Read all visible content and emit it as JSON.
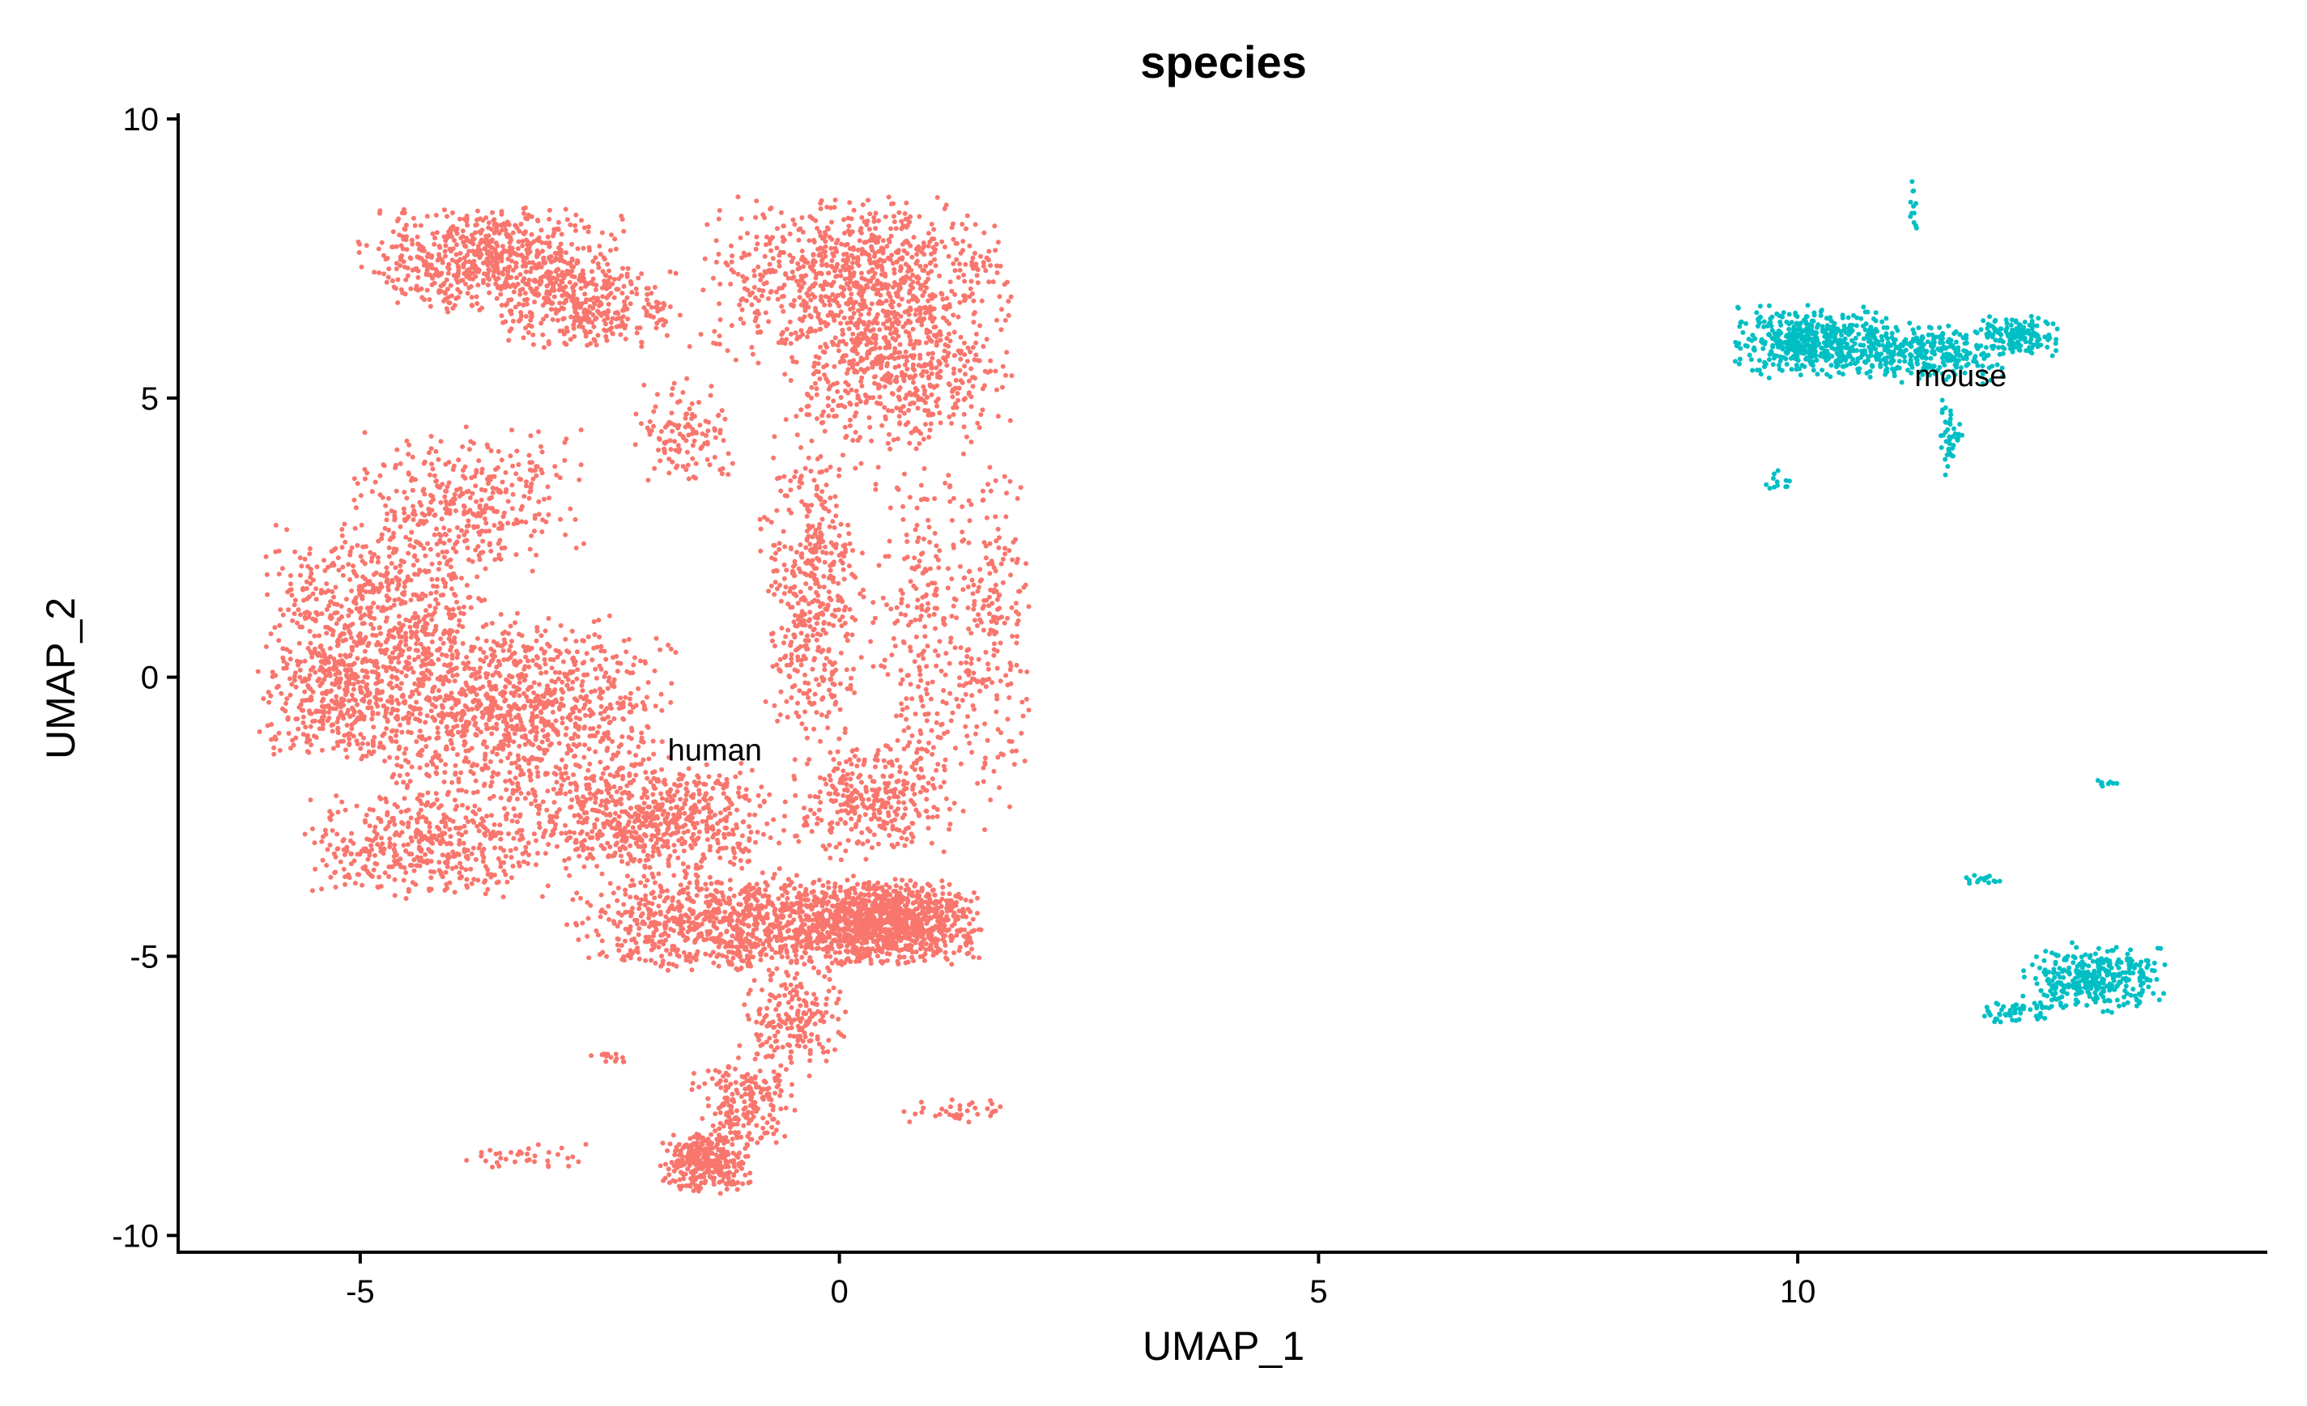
{
  "chart_data": {
    "type": "scatter",
    "title": "species",
    "xlabel": "UMAP_1",
    "ylabel": "UMAP_2",
    "xlim": [
      -6.9,
      14.9
    ],
    "ylim": [
      -10.3,
      10.1
    ],
    "xticks": [
      -5,
      0,
      5,
      10
    ],
    "yticks": [
      -10,
      -5,
      0,
      5,
      10
    ],
    "legend": "none",
    "grid": false,
    "series": [
      {
        "name": "human",
        "color": "#F8766D",
        "regions": [
          {
            "cx": -3.6,
            "cy": 7.5,
            "rx": 1.3,
            "ry": 0.9,
            "n": 700
          },
          {
            "cx": -2.6,
            "cy": 6.6,
            "rx": 0.9,
            "ry": 0.7,
            "n": 300
          },
          {
            "cx": 0.2,
            "cy": 7.1,
            "rx": 1.5,
            "ry": 1.4,
            "n": 900
          },
          {
            "cx": 0.6,
            "cy": 5.4,
            "rx": 1.1,
            "ry": 1.2,
            "n": 500
          },
          {
            "cx": -1.6,
            "cy": 4.4,
            "rx": 0.5,
            "ry": 0.9,
            "n": 120
          },
          {
            "cx": -3.9,
            "cy": 3.2,
            "rx": 1.1,
            "ry": 1.2,
            "n": 350
          },
          {
            "cx": -4.8,
            "cy": 1.2,
            "rx": 1.1,
            "ry": 1.5,
            "n": 600
          },
          {
            "cx": -5.2,
            "cy": -0.4,
            "rx": 0.8,
            "ry": 1.0,
            "n": 350
          },
          {
            "cx": -3.4,
            "cy": -0.6,
            "rx": 1.6,
            "ry": 1.6,
            "n": 1100
          },
          {
            "cx": -4.3,
            "cy": -3.0,
            "rx": 1.2,
            "ry": 0.9,
            "n": 450
          },
          {
            "cx": -2.0,
            "cy": -2.6,
            "rx": 1.3,
            "ry": 1.0,
            "n": 650
          },
          {
            "cx": -1.1,
            "cy": -4.4,
            "rx": 1.6,
            "ry": 0.8,
            "n": 900
          },
          {
            "cx": 0.5,
            "cy": -4.4,
            "rx": 0.9,
            "ry": 0.7,
            "n": 1000
          },
          {
            "cx": -0.3,
            "cy": 1.5,
            "rx": 0.5,
            "ry": 2.6,
            "n": 450
          },
          {
            "cx": 0.9,
            "cy": 0.5,
            "rx": 0.6,
            "ry": 3.5,
            "n": 300
          },
          {
            "cx": 1.6,
            "cy": 0.8,
            "rx": 0.35,
            "ry": 3.0,
            "n": 180
          },
          {
            "cx": 0.3,
            "cy": -2.2,
            "rx": 0.8,
            "ry": 1.0,
            "n": 300
          },
          {
            "cx": -0.5,
            "cy": -6.1,
            "rx": 0.5,
            "ry": 1.0,
            "n": 200
          },
          {
            "cx": -1.0,
            "cy": -7.6,
            "rx": 0.5,
            "ry": 0.8,
            "n": 200
          },
          {
            "cx": -1.4,
            "cy": -8.7,
            "rx": 0.45,
            "ry": 0.5,
            "n": 300
          },
          {
            "cx": -3.2,
            "cy": -8.6,
            "rx": 0.7,
            "ry": 0.22,
            "n": 35
          },
          {
            "cx": 1.2,
            "cy": -7.8,
            "rx": 0.5,
            "ry": 0.22,
            "n": 35
          },
          {
            "cx": -2.4,
            "cy": -6.8,
            "rx": 0.18,
            "ry": 0.1,
            "n": 15
          }
        ]
      },
      {
        "name": "mouse",
        "color": "#00BFC4",
        "regions": [
          {
            "cx": 10.2,
            "cy": 6.0,
            "rx": 0.8,
            "ry": 0.6,
            "n": 500
          },
          {
            "cx": 11.3,
            "cy": 5.8,
            "rx": 0.8,
            "ry": 0.5,
            "n": 300
          },
          {
            "cx": 12.3,
            "cy": 6.1,
            "rx": 0.4,
            "ry": 0.35,
            "n": 140
          },
          {
            "cx": 11.6,
            "cy": 4.3,
            "rx": 0.12,
            "ry": 0.7,
            "n": 40
          },
          {
            "cx": 11.2,
            "cy": 8.5,
            "rx": 0.06,
            "ry": 0.5,
            "n": 12
          },
          {
            "cx": 9.8,
            "cy": 3.5,
            "rx": 0.15,
            "ry": 0.2,
            "n": 12
          },
          {
            "cx": 13.1,
            "cy": -5.4,
            "rx": 0.7,
            "ry": 0.55,
            "n": 330
          },
          {
            "cx": 12.3,
            "cy": -6.0,
            "rx": 0.35,
            "ry": 0.18,
            "n": 50
          },
          {
            "cx": 11.9,
            "cy": -3.6,
            "rx": 0.2,
            "ry": 0.1,
            "n": 15
          },
          {
            "cx": 13.2,
            "cy": -1.9,
            "rx": 0.12,
            "ry": 0.08,
            "n": 8
          }
        ]
      }
    ],
    "labels": [
      {
        "text": "human",
        "x": -1.3,
        "y": -1.3
      },
      {
        "text": "mouse",
        "x": 11.7,
        "y": 5.4
      }
    ]
  }
}
